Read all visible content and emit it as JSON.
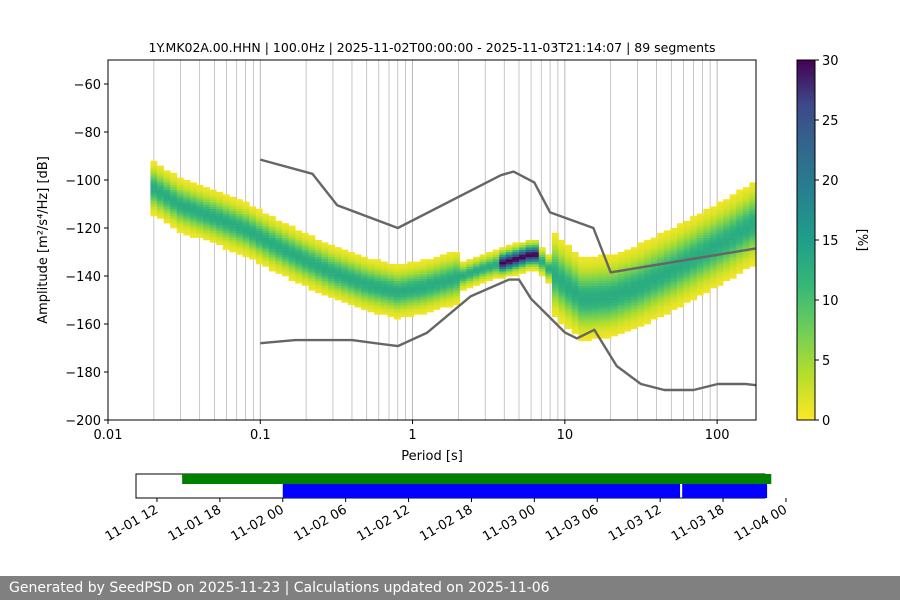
{
  "footer_text": "Generated by SeedPSD on 2025-11-23 | Calculations updated on 2025-11-06",
  "chart_data": [
    {
      "type": "heatmap",
      "title": "1Y.MK02A.00.HHN | 100.0Hz | 2025-11-02T00:00:00 - 2025-11-03T21:14:07 | 89 segments",
      "xlabel": "Period [s]",
      "ylabel": "Amplitude [m²/s⁴/Hz] [dB]",
      "xscale": "log",
      "xlim": [
        0.01,
        180
      ],
      "ylim": [
        -200,
        -50
      ],
      "x_ticks": [
        0.01,
        0.1,
        1,
        10,
        100
      ],
      "x_tick_labels": [
        "0.01",
        "0.1",
        "1",
        "10",
        "100"
      ],
      "y_ticks": [
        -200,
        -180,
        -160,
        -140,
        -120,
        -100,
        -80,
        -60
      ],
      "y_tick_labels": [
        "−200",
        "−180",
        "−160",
        "−140",
        "−120",
        "−100",
        "−80",
        "−60"
      ],
      "grid": "vertical, log minor",
      "colorbar": {
        "label": "[%]",
        "colormap": "viridis_r",
        "range": [
          0,
          30
        ],
        "ticks": [
          0,
          5,
          10,
          15,
          20,
          25,
          30
        ],
        "tick_labels": [
          "0",
          "5",
          "10",
          "15",
          "20",
          "25",
          "30"
        ]
      },
      "psd_mode": [
        {
          "x": 0.02,
          "y": -104
        },
        {
          "x": 0.03,
          "y": -111
        },
        {
          "x": 0.05,
          "y": -116
        },
        {
          "x": 0.08,
          "y": -121
        },
        {
          "x": 0.12,
          "y": -127
        },
        {
          "x": 0.2,
          "y": -134
        },
        {
          "x": 0.3,
          "y": -139
        },
        {
          "x": 0.5,
          "y": -144
        },
        {
          "x": 0.8,
          "y": -147
        },
        {
          "x": 1.2,
          "y": -145
        },
        {
          "x": 2,
          "y": -141
        },
        {
          "x": 3,
          "y": -137
        },
        {
          "x": 5,
          "y": -133
        },
        {
          "x": 6.3,
          "y": -131
        },
        {
          "x": 8,
          "y": -138
        },
        {
          "x": 10,
          "y": -144
        },
        {
          "x": 13,
          "y": -150
        },
        {
          "x": 20,
          "y": -149
        },
        {
          "x": 30,
          "y": -145
        },
        {
          "x": 50,
          "y": -138
        },
        {
          "x": 80,
          "y": -131
        },
        {
          "x": 120,
          "y": -125
        },
        {
          "x": 180,
          "y": -118
        }
      ],
      "series": [
        {
          "name": "",
          "color": "#666666",
          "x": [
            0.1,
            0.22,
            0.32,
            0.8,
            3.8,
            4.6,
            6.3,
            8,
            15.4,
            20,
            180
          ],
          "y": [
            -91.5,
            -97.4,
            -110.5,
            -120,
            -98,
            -96.5,
            -101,
            -113.5,
            -120,
            -138.5,
            -128.5
          ]
        },
        {
          "name": "",
          "color": "#666666",
          "x": [
            0.1,
            0.17,
            0.4,
            0.8,
            1.24,
            2.4,
            4.3,
            5,
            6,
            10,
            12,
            15.6,
            21.9,
            31.6,
            45,
            70,
            101,
            154,
            180
          ],
          "y": [
            -168,
            -166.7,
            -166.7,
            -169.2,
            -163.7,
            -148.5,
            -141.5,
            -141.5,
            -149.5,
            -163.5,
            -166,
            -162.4,
            -177.5,
            -185,
            -187.5,
            -187.5,
            -185,
            -185,
            -185.5
          ]
        }
      ]
    },
    {
      "type": "timeline",
      "x_ticks": [
        "11-01 12",
        "11-01 18",
        "11-02 00",
        "11-02 06",
        "11-02 12",
        "11-02 18",
        "11-03 00",
        "11-03 06",
        "11-03 12",
        "11-03 18",
        "11-04 00"
      ],
      "xlim_hours": [
        -14,
        46
      ],
      "bars": [
        {
          "row": "top",
          "color": "#008000",
          "start_hours": -9.6,
          "end_hours": 46.6
        },
        {
          "row": "bottom",
          "color": "#0000ff",
          "start_hours": 0,
          "end_hours": 37.9
        },
        {
          "row": "bottom",
          "color": "#0000ff",
          "start_hours": 38.1,
          "end_hours": 46.2
        }
      ]
    }
  ]
}
